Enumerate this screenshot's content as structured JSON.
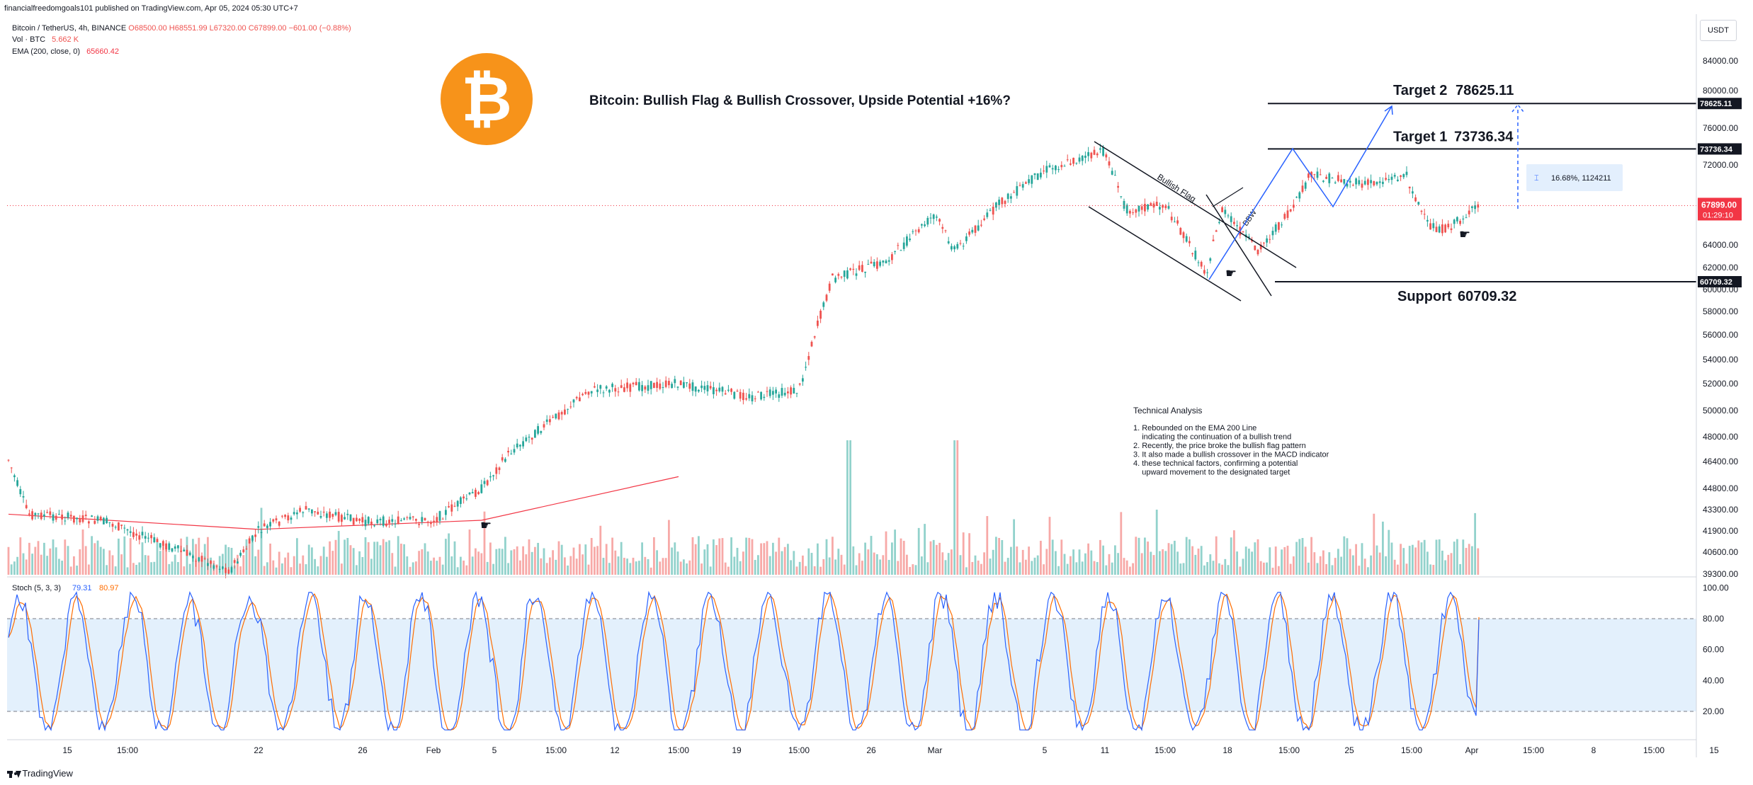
{
  "header": {
    "published": "financialfreedomgoals101 published on TradingView.com, Apr 05, 2024 05:30 UTC+7",
    "symbol": "Bitcoin / TetherUS, 4h, BINANCE",
    "ohlc": {
      "o": "O68500.00",
      "h": "H68551.99",
      "l": "L67320.00",
      "c": "C67899.00",
      "change": "−601.00 (−0.88%)"
    },
    "vol_label": "Vol · BTC",
    "vol_value": "5.662 K",
    "ema_label": "EMA (200, close, 0)",
    "ema_value": "65660.42",
    "currency_button": "USDT"
  },
  "footer": {
    "brand": "TradingView"
  },
  "colors": {
    "up": "#26a69a",
    "down": "#ef5350",
    "ema": "#f23645",
    "blue": "#2962ff",
    "stoch_k": "#2962ff",
    "stoch_d": "#ff6d00",
    "logo": "#f7931a"
  },
  "icons": [
    "bitcoin-logo-icon",
    "hand-pointer-icon",
    "ruler-icon",
    "tradingview-logo-icon"
  ],
  "chart_data": [
    {
      "type": "candlestick",
      "title": "Bitcoin: Bullish Flag & Bullish Crossover, Upside Potential +16%?",
      "x_tick_labels": [
        "15",
        "15:00",
        "22",
        "26",
        "Feb",
        "5",
        "15:00",
        "12",
        "15:00",
        "19",
        "15:00",
        "26",
        "Mar",
        "5",
        "11",
        "15:00",
        "18",
        "15:00",
        "25",
        "15:00",
        "Apr",
        "15:00",
        "8",
        "15:00",
        "15"
      ],
      "y_tick_labels": [
        "84000.00",
        "80000.00",
        "76000.00",
        "72000.00",
        "68000.00",
        "64000.00",
        "62000.00",
        "60000.00",
        "58000.00",
        "56000.00",
        "54000.00",
        "52000.00",
        "50000.00",
        "48000.00",
        "46400.00",
        "44800.00",
        "43300.00",
        "41900.00",
        "40600.00",
        "39300.00"
      ],
      "series_path_approx": [
        {
          "date": "Jan 11",
          "price": 46500
        },
        {
          "date": "Jan 12",
          "price": 43000
        },
        {
          "date": "Jan 15",
          "price": 42800
        },
        {
          "date": "Jan 18",
          "price": 42500
        },
        {
          "date": "Jan 22",
          "price": 40500
        },
        {
          "date": "Jan 24",
          "price": 39500
        },
        {
          "date": "Jan 26",
          "price": 41900
        },
        {
          "date": "Jan 29",
          "price": 43300
        },
        {
          "date": "Feb 1",
          "price": 42500
        },
        {
          "date": "Feb 5",
          "price": 42600
        },
        {
          "date": "Feb 8",
          "price": 44800
        },
        {
          "date": "Feb 10",
          "price": 47000
        },
        {
          "date": "Feb 12",
          "price": 49500
        },
        {
          "date": "Feb 14",
          "price": 51500
        },
        {
          "date": "Feb 19",
          "price": 52000
        },
        {
          "date": "Feb 23",
          "price": 51000
        },
        {
          "date": "Feb 26",
          "price": 51500
        },
        {
          "date": "Feb 27",
          "price": 56000
        },
        {
          "date": "Feb 28",
          "price": 61000
        },
        {
          "date": "Mar 3",
          "price": 62500
        },
        {
          "date": "Mar 5",
          "price": 67000
        },
        {
          "date": "Mar 5 dip",
          "price": 63500
        },
        {
          "date": "Mar 8",
          "price": 68000
        },
        {
          "date": "Mar 11",
          "price": 71500
        },
        {
          "date": "Mar 14",
          "price": 73500
        },
        {
          "date": "Mar 16",
          "price": 67500
        },
        {
          "date": "Mar 18",
          "price": 68000
        },
        {
          "date": "Mar 20",
          "price": 61500
        },
        {
          "date": "Mar 21",
          "price": 67500
        },
        {
          "date": "Mar 23",
          "price": 63500
        },
        {
          "date": "Mar 25",
          "price": 67500
        },
        {
          "date": "Mar 26",
          "price": 71000
        },
        {
          "date": "Mar 29",
          "price": 70000
        },
        {
          "date": "Apr 1",
          "price": 71000
        },
        {
          "date": "Apr 2",
          "price": 66000
        },
        {
          "date": "Apr 3",
          "price": 65500
        },
        {
          "date": "Apr 4",
          "price": 67899
        }
      ],
      "ema200_approx": [
        {
          "date": "Jan 11",
          "price": 43000
        },
        {
          "date": "Jan 26",
          "price": 42000
        },
        {
          "date": "Feb 8",
          "price": 42600
        },
        {
          "date": "Feb 19",
          "price": 45500
        },
        {
          "date": "Mar 1",
          "price": 49000
        },
        {
          "date": "Mar 11",
          "price": 56500
        },
        {
          "date": "Mar 20",
          "price": 61000
        },
        {
          "date": "Apr 4",
          "price": 65660.42
        }
      ],
      "levels": [
        {
          "label": "Target 2",
          "value": "78625.11",
          "price": 78625.11
        },
        {
          "label": "Target 1",
          "value": "73736.34",
          "price": 73736.34
        },
        {
          "label": "Support",
          "value": "60709.32",
          "price": 60709.32
        }
      ],
      "current_price": {
        "value": "67899.00",
        "countdown": "01:29:10"
      },
      "measure_label": "16.68%, 1124211",
      "pattern_labels": [
        "Bullish Flag",
        "BBW"
      ],
      "notes": {
        "title": "Technical Analysis",
        "lines": [
          "1. Rebounded on the EMA 200 Line",
          "    indicating the continuation of a bullish trend",
          "2. Recently, the price broke the bullish flag pattern",
          "3. It also made a bullish crossover in the MACD indicator",
          "4. these technical factors, confirming a potential",
          "    upward movement to the designated target"
        ]
      }
    },
    {
      "type": "line",
      "title": "Stoch (5, 3, 3)",
      "series": [
        {
          "name": "%K",
          "last": "79.31"
        },
        {
          "name": "%D",
          "last": "80.97"
        }
      ],
      "ylim": [
        0,
        100
      ],
      "y_tick_labels": [
        "100.00",
        "80.00",
        "60.00",
        "40.00",
        "20.00"
      ],
      "bands": [
        20,
        80
      ]
    }
  ]
}
